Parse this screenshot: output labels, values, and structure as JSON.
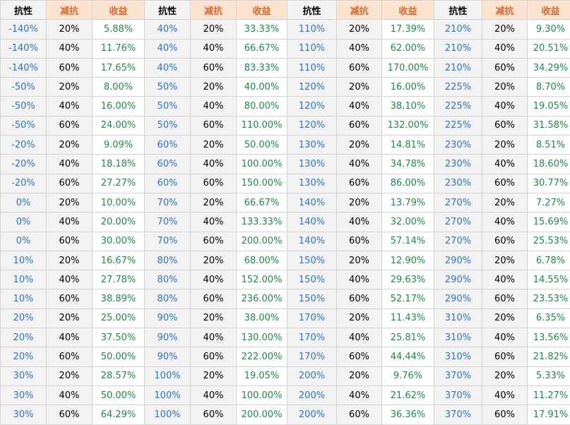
{
  "headers": [
    "抗性",
    "减抗",
    "收益"
  ],
  "colors": {
    "resistance_text": "#2e74c9",
    "gain_text": "#1e8a4c",
    "header_accent": "#e0662c",
    "header_accent_bg": "#fde4d0",
    "cell_bg": "#f2f2f2",
    "gain_bg": "#ffffff",
    "group_divider_colors": [
      "#5b9bd5",
      "#e0662c",
      "#9b6fd6",
      "#5bc6c6"
    ]
  },
  "blocks": [
    {
      "rows": [
        {
          "res": "-140%",
          "red": "20%",
          "gain": "5.88%"
        },
        {
          "res": "-140%",
          "red": "40%",
          "gain": "11.76%"
        },
        {
          "res": "-140%",
          "red": "60%",
          "gain": "17.65%"
        },
        {
          "res": "-50%",
          "red": "20%",
          "gain": "8.00%"
        },
        {
          "res": "-50%",
          "red": "40%",
          "gain": "16.00%"
        },
        {
          "res": "-50%",
          "red": "60%",
          "gain": "24.00%"
        },
        {
          "res": "-20%",
          "red": "20%",
          "gain": "9.09%"
        },
        {
          "res": "-20%",
          "red": "40%",
          "gain": "18.18%"
        },
        {
          "res": "-20%",
          "red": "60%",
          "gain": "27.27%"
        },
        {
          "res": "0%",
          "red": "20%",
          "gain": "10.00%"
        },
        {
          "res": "0%",
          "red": "40%",
          "gain": "20.00%"
        },
        {
          "res": "0%",
          "red": "60%",
          "gain": "30.00%"
        },
        {
          "res": "10%",
          "red": "20%",
          "gain": "16.67%"
        },
        {
          "res": "10%",
          "red": "40%",
          "gain": "27.78%"
        },
        {
          "res": "10%",
          "red": "60%",
          "gain": "38.89%"
        },
        {
          "res": "20%",
          "red": "20%",
          "gain": "25.00%"
        },
        {
          "res": "20%",
          "red": "40%",
          "gain": "37.50%"
        },
        {
          "res": "20%",
          "red": "60%",
          "gain": "50.00%"
        },
        {
          "res": "30%",
          "red": "20%",
          "gain": "28.57%"
        },
        {
          "res": "30%",
          "red": "40%",
          "gain": "50.00%"
        },
        {
          "res": "30%",
          "red": "60%",
          "gain": "64.29%"
        }
      ]
    },
    {
      "rows": [
        {
          "res": "40%",
          "red": "20%",
          "gain": "33.33%"
        },
        {
          "res": "40%",
          "red": "40%",
          "gain": "66.67%"
        },
        {
          "res": "40%",
          "red": "60%",
          "gain": "83.33%"
        },
        {
          "res": "50%",
          "red": "20%",
          "gain": "40.00%"
        },
        {
          "res": "50%",
          "red": "40%",
          "gain": "80.00%"
        },
        {
          "res": "50%",
          "red": "60%",
          "gain": "110.00%"
        },
        {
          "res": "60%",
          "red": "20%",
          "gain": "50.00%"
        },
        {
          "res": "60%",
          "red": "40%",
          "gain": "100.00%"
        },
        {
          "res": "60%",
          "red": "60%",
          "gain": "150.00%"
        },
        {
          "res": "70%",
          "red": "20%",
          "gain": "66.67%"
        },
        {
          "res": "70%",
          "red": "40%",
          "gain": "133.33%"
        },
        {
          "res": "70%",
          "red": "60%",
          "gain": "200.00%"
        },
        {
          "res": "80%",
          "red": "20%",
          "gain": "68.00%"
        },
        {
          "res": "80%",
          "red": "40%",
          "gain": "152.00%"
        },
        {
          "res": "80%",
          "red": "60%",
          "gain": "236.00%"
        },
        {
          "res": "90%",
          "red": "20%",
          "gain": "38.00%"
        },
        {
          "res": "90%",
          "red": "40%",
          "gain": "130.00%"
        },
        {
          "res": "90%",
          "red": "60%",
          "gain": "222.00%"
        },
        {
          "res": "100%",
          "red": "20%",
          "gain": "19.05%"
        },
        {
          "res": "100%",
          "red": "40%",
          "gain": "100.00%"
        },
        {
          "res": "100%",
          "red": "60%",
          "gain": "200.00%"
        }
      ]
    },
    {
      "rows": [
        {
          "res": "110%",
          "red": "20%",
          "gain": "17.39%"
        },
        {
          "res": "110%",
          "red": "40%",
          "gain": "62.00%"
        },
        {
          "res": "110%",
          "red": "60%",
          "gain": "170.00%"
        },
        {
          "res": "120%",
          "red": "20%",
          "gain": "16.00%"
        },
        {
          "res": "120%",
          "red": "40%",
          "gain": "38.10%"
        },
        {
          "res": "120%",
          "red": "60%",
          "gain": "132.00%"
        },
        {
          "res": "130%",
          "red": "20%",
          "gain": "14.81%"
        },
        {
          "res": "130%",
          "red": "40%",
          "gain": "34.78%"
        },
        {
          "res": "130%",
          "red": "60%",
          "gain": "86.00%"
        },
        {
          "res": "140%",
          "red": "20%",
          "gain": "13.79%"
        },
        {
          "res": "140%",
          "red": "40%",
          "gain": "32.00%"
        },
        {
          "res": "140%",
          "red": "60%",
          "gain": "57.14%"
        },
        {
          "res": "150%",
          "red": "20%",
          "gain": "12.90%"
        },
        {
          "res": "150%",
          "red": "40%",
          "gain": "29.63%"
        },
        {
          "res": "150%",
          "red": "60%",
          "gain": "52.17%"
        },
        {
          "res": "170%",
          "red": "20%",
          "gain": "11.43%"
        },
        {
          "res": "170%",
          "red": "40%",
          "gain": "25.81%"
        },
        {
          "res": "170%",
          "red": "60%",
          "gain": "44.44%"
        },
        {
          "res": "200%",
          "red": "20%",
          "gain": "9.76%"
        },
        {
          "res": "200%",
          "red": "40%",
          "gain": "21.62%"
        },
        {
          "res": "200%",
          "red": "60%",
          "gain": "36.36%"
        }
      ]
    },
    {
      "rows": [
        {
          "res": "210%",
          "red": "20%",
          "gain": "9.30%"
        },
        {
          "res": "210%",
          "red": "40%",
          "gain": "20.51%"
        },
        {
          "res": "210%",
          "red": "60%",
          "gain": "34.29%"
        },
        {
          "res": "225%",
          "red": "20%",
          "gain": "8.70%"
        },
        {
          "res": "225%",
          "red": "40%",
          "gain": "19.05%"
        },
        {
          "res": "225%",
          "red": "60%",
          "gain": "31.58%"
        },
        {
          "res": "230%",
          "red": "20%",
          "gain": "8.51%"
        },
        {
          "res": "230%",
          "red": "40%",
          "gain": "18.60%"
        },
        {
          "res": "230%",
          "red": "60%",
          "gain": "30.77%"
        },
        {
          "res": "270%",
          "red": "20%",
          "gain": "7.27%"
        },
        {
          "res": "270%",
          "red": "40%",
          "gain": "15.69%"
        },
        {
          "res": "270%",
          "red": "60%",
          "gain": "25.53%"
        },
        {
          "res": "290%",
          "red": "20%",
          "gain": "6.78%"
        },
        {
          "res": "290%",
          "red": "40%",
          "gain": "14.55%"
        },
        {
          "res": "290%",
          "red": "60%",
          "gain": "23.53%"
        },
        {
          "res": "310%",
          "red": "20%",
          "gain": "6.35%"
        },
        {
          "res": "310%",
          "red": "40%",
          "gain": "13.56%"
        },
        {
          "res": "310%",
          "red": "60%",
          "gain": "21.82%"
        },
        {
          "res": "370%",
          "red": "20%",
          "gain": "5.33%"
        },
        {
          "res": "370%",
          "red": "40%",
          "gain": "11.27%"
        },
        {
          "res": "370%",
          "red": "60%",
          "gain": "17.91%"
        }
      ]
    }
  ]
}
